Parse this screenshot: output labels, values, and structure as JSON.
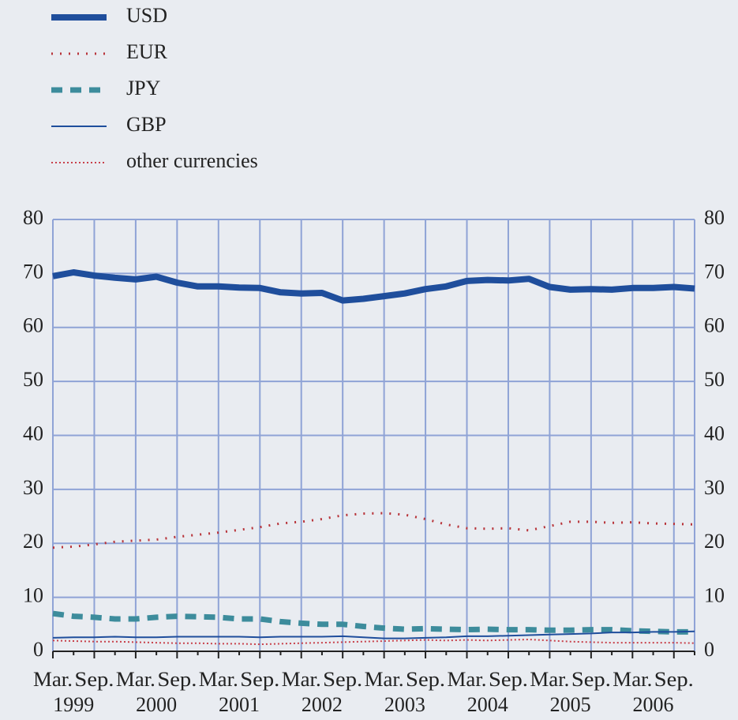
{
  "chart_data": {
    "type": "line",
    "categories": [
      "Mar.",
      null,
      "Sep.",
      null,
      "Mar.",
      null,
      "Sep.",
      null,
      "Mar.",
      null,
      "Sep.",
      null,
      "Mar.",
      null,
      "Sep.",
      null,
      "Mar.",
      null,
      "Sep.",
      null,
      "Mar.",
      null,
      "Sep.",
      null,
      "Mar.",
      null,
      "Sep.",
      null,
      "Mar.",
      null,
      "Sep.",
      null
    ],
    "years": [
      "1999",
      "2000",
      "2001",
      "2002",
      "2003",
      "2004",
      "2005",
      "2006"
    ],
    "series": [
      {
        "name": "USD",
        "color": "#1f4e9c",
        "values": [
          69.5,
          70.2,
          69.6,
          69.2,
          68.9,
          69.4,
          68.3,
          67.6,
          67.6,
          67.4,
          67.3,
          66.5,
          66.3,
          66.4,
          65.0,
          65.3,
          65.8,
          66.3,
          67.1,
          67.6,
          68.6,
          68.8,
          68.7,
          69.0,
          67.5,
          67.0,
          67.1,
          67.0,
          67.3,
          67.3,
          67.5,
          67.2
        ]
      },
      {
        "name": "EUR",
        "color": "#b8343a",
        "values": [
          19.2,
          19.4,
          19.8,
          20.3,
          20.5,
          20.7,
          21.2,
          21.6,
          22.0,
          22.5,
          23.0,
          23.7,
          24.0,
          24.5,
          25.2,
          25.5,
          25.6,
          25.3,
          24.5,
          23.5,
          22.8,
          22.7,
          22.8,
          22.4,
          23.2,
          24.0,
          24.0,
          23.8,
          23.9,
          23.7,
          23.6,
          23.5
        ]
      },
      {
        "name": "JPY",
        "color": "#3d8c9c",
        "values": [
          7.0,
          6.5,
          6.3,
          6.0,
          6.0,
          6.3,
          6.5,
          6.4,
          6.3,
          6.0,
          6.0,
          5.5,
          5.2,
          5.0,
          5.0,
          4.6,
          4.3,
          4.1,
          4.2,
          4.1,
          4.0,
          4.1,
          4.0,
          4.0,
          3.9,
          3.9,
          4.0,
          4.0,
          3.8,
          3.7,
          3.6,
          3.6
        ]
      },
      {
        "name": "GBP",
        "color": "#1f4e9c",
        "values": [
          2.5,
          2.6,
          2.6,
          2.7,
          2.6,
          2.6,
          2.7,
          2.7,
          2.7,
          2.7,
          2.6,
          2.7,
          2.7,
          2.7,
          2.8,
          2.6,
          2.4,
          2.4,
          2.5,
          2.6,
          2.8,
          2.8,
          2.9,
          3.0,
          3.1,
          3.2,
          3.3,
          3.5,
          3.5,
          3.6,
          3.6,
          3.7
        ]
      },
      {
        "name": "other currencies",
        "color": "#c8404a",
        "values": [
          2.0,
          1.9,
          1.8,
          1.8,
          1.7,
          1.6,
          1.5,
          1.5,
          1.4,
          1.4,
          1.3,
          1.4,
          1.5,
          1.6,
          1.7,
          1.8,
          1.9,
          2.0,
          2.1,
          2.0,
          2.1,
          2.0,
          2.1,
          2.2,
          2.0,
          1.8,
          1.7,
          1.6,
          1.6,
          1.6,
          1.6,
          1.5
        ]
      }
    ],
    "ylim": [
      0,
      80
    ],
    "yticks": [
      0,
      10,
      20,
      30,
      40,
      50,
      60,
      70,
      80
    ],
    "grid": true,
    "legend": "top-left"
  }
}
